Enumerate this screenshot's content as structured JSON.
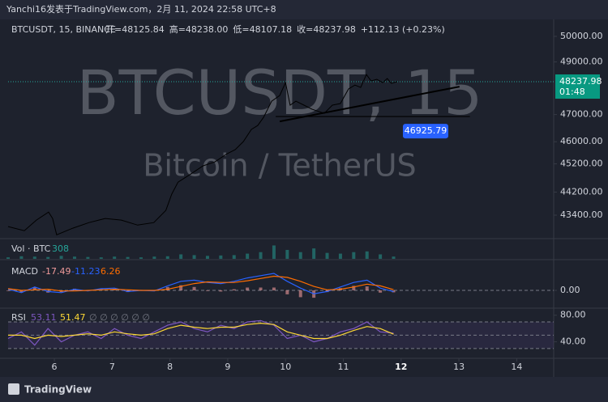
{
  "header": "Yanchi16发表于TradingView.com，2月 11, 2024 22:58 UTC+8",
  "footer": "TradingView",
  "chart_data": [
    {
      "type": "line",
      "title": "BTCUSDT, 15, BINANCE",
      "legend_items": [
        "开=48125.84",
        "高=48238.00",
        "低=48107.18",
        "收=48237.98",
        "+112.13 (+0.23%)"
      ],
      "watermark": [
        "BTCUSDT, 15",
        "Bitcoin / TetherUS"
      ],
      "x": [
        5.2,
        5.48,
        5.69,
        5.9,
        5.97,
        6.04,
        6.32,
        6.6,
        6.88,
        7.16,
        7.44,
        7.72,
        7.93,
        8.03,
        8.14,
        8.36,
        8.57,
        8.78,
        8.99,
        9.13,
        9.27,
        9.41,
        9.52,
        9.62,
        9.76,
        9.9,
        10.0,
        10.08,
        10.18,
        10.32,
        10.46,
        10.67,
        10.81,
        10.95,
        11.09,
        11.2,
        11.3,
        11.4,
        11.48,
        11.58,
        11.68,
        11.76,
        11.83,
        11.93
      ],
      "values": [
        43010,
        42870,
        43230,
        43505,
        43285,
        42730,
        42955,
        43145,
        43285,
        43230,
        43060,
        43145,
        43565,
        44125,
        44550,
        44835,
        45125,
        45270,
        45565,
        45710,
        46005,
        46450,
        46595,
        46895,
        47500,
        47715,
        48205,
        47350,
        47500,
        47350,
        47195,
        47045,
        47350,
        47410,
        47960,
        48110,
        48020,
        48515,
        48265,
        48330,
        48205,
        48360,
        48175,
        48237.98
      ],
      "color": "#000000",
      "log_scale": true,
      "xlim": [
        5.2,
        14.64
      ],
      "xticks": [
        6,
        7,
        8,
        9,
        10,
        11,
        12,
        13,
        14
      ],
      "ylim": [
        42683,
        50483
      ],
      "yticks": [
        {
          "value": 50000,
          "label": "50000.00"
        },
        {
          "value": 49000,
          "label": "49000.00"
        },
        {
          "value": 47000,
          "label": "47000.00"
        },
        {
          "value": 46000,
          "label": "46000.00"
        },
        {
          "value": 45200,
          "label": "45200.00"
        },
        {
          "value": 44200,
          "label": "44200.00"
        },
        {
          "value": 43400,
          "label": "43400.00"
        }
      ],
      "countdown": "01:48",
      "horizontal_line": {
        "value": 46925.79,
        "x": [
          9.83,
          13.19
        ]
      },
      "trendline": {
        "x": [
          9.9,
          13.01
        ],
        "y": [
          46745,
          48050
        ]
      }
    },
    {
      "type": "bar",
      "title": "Vol · BTC",
      "color": "#26a69a",
      "x": [
        5.2,
        5.43,
        5.66,
        5.89,
        6.12,
        6.35,
        6.58,
        6.81,
        7.04,
        7.27,
        7.5,
        7.73,
        7.96,
        8.19,
        8.42,
        8.65,
        8.88,
        9.11,
        9.34,
        9.57,
        9.8,
        10.03,
        10.26,
        10.49,
        10.72,
        10.95,
        11.18,
        11.41,
        11.64,
        11.87
      ],
      "values": [
        200,
        350,
        300,
        250,
        400,
        300,
        250,
        200,
        300,
        250,
        200,
        300,
        350,
        600,
        500,
        400,
        450,
        500,
        700,
        900,
        1800,
        1200,
        900,
        1400,
        800,
        700,
        900,
        1000,
        600,
        308
      ],
      "ylim": [
        0,
        2500
      ]
    },
    {
      "type": "line",
      "title": "MACD",
      "x": [
        5.2,
        5.43,
        5.66,
        5.89,
        6.12,
        6.35,
        6.58,
        6.81,
        7.04,
        7.27,
        7.5,
        7.73,
        7.96,
        8.19,
        8.42,
        8.65,
        8.88,
        9.11,
        9.34,
        9.57,
        9.8,
        10.03,
        10.26,
        10.49,
        10.72,
        10.95,
        11.18,
        11.41,
        11.64,
        11.87
      ],
      "series": [
        {
          "type": "bar",
          "color": "#ef9a9a",
          "values": [
            -5,
            -20,
            25,
            -20,
            -15,
            15,
            -5,
            10,
            10,
            -15,
            0,
            -5,
            30,
            45,
            30,
            -5,
            -10,
            10,
            25,
            25,
            25,
            -35,
            -60,
            -65,
            -15,
            20,
            40,
            35,
            -20,
            -17.49
          ]
        },
        {
          "color": "#2962ff",
          "values": [
            10,
            -20,
            30,
            -10,
            -20,
            10,
            -5,
            15,
            20,
            -10,
            0,
            -5,
            40,
            80,
            90,
            70,
            60,
            80,
            110,
            130,
            150,
            80,
            20,
            -30,
            -10,
            30,
            70,
            90,
            20,
            -11.23
          ]
        },
        {
          "color": "#ff6d00",
          "values": [
            15,
            0,
            5,
            10,
            -5,
            -5,
            0,
            5,
            10,
            5,
            0,
            0,
            10,
            35,
            60,
            75,
            70,
            70,
            85,
            105,
            125,
            115,
            80,
            35,
            5,
            10,
            30,
            55,
            40,
            6.26
          ]
        }
      ],
      "ylim": [
        -150,
        250
      ],
      "yticks": [
        {
          "value": 0,
          "label": "0.00"
        }
      ]
    },
    {
      "type": "line",
      "title": "RSI",
      "placeholders": "∅ ∅ ∅ ∅ ∅ ∅",
      "x": [
        5.2,
        5.43,
        5.66,
        5.89,
        6.12,
        6.35,
        6.58,
        6.81,
        7.04,
        7.27,
        7.5,
        7.73,
        7.96,
        8.19,
        8.42,
        8.65,
        8.88,
        9.11,
        9.34,
        9.57,
        9.8,
        10.03,
        10.26,
        10.49,
        10.72,
        10.95,
        11.18,
        11.41,
        11.64,
        11.87
      ],
      "series": [
        {
          "color": "#7e57c2",
          "values": [
            45,
            55,
            35,
            60,
            40,
            50,
            55,
            45,
            60,
            50,
            45,
            55,
            65,
            70,
            60,
            55,
            65,
            60,
            70,
            72,
            65,
            45,
            50,
            40,
            45,
            55,
            60,
            70,
            55,
            53.11
          ]
        },
        {
          "color": "#fdd835",
          "values": [
            50,
            50,
            45,
            50,
            48,
            50,
            52,
            50,
            55,
            52,
            50,
            52,
            60,
            65,
            62,
            60,
            62,
            62,
            66,
            68,
            66,
            55,
            50,
            45,
            45,
            50,
            57,
            63,
            60,
            51.47
          ]
        }
      ],
      "ylim": [
        17.6,
        88.2
      ],
      "yticks": [
        {
          "value": 80,
          "label": "80.00"
        },
        {
          "value": 40,
          "label": "40.00"
        }
      ],
      "band": [
        30,
        70
      ],
      "midline": 50
    }
  ]
}
